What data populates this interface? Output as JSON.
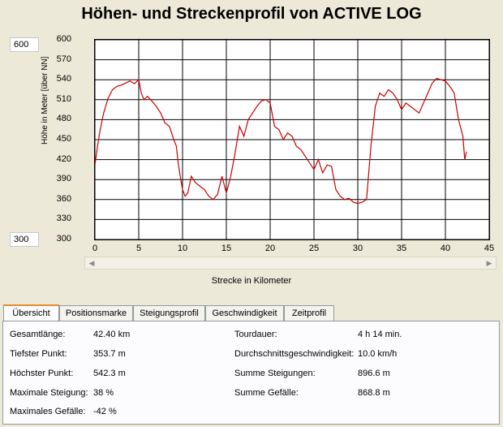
{
  "title": "Höhen- und Streckenprofil von ACTIVE LOG",
  "scale": {
    "max_value": "600",
    "min_value": "300"
  },
  "chart_data": {
    "type": "line",
    "xlabel": "Strecke in Kilometer",
    "ylabel": "Höhe in Meter [über NN]",
    "xlim": [
      0,
      45
    ],
    "ylim": [
      300,
      600
    ],
    "grid": true,
    "y_ticks": [
      "600",
      "570",
      "540",
      "510",
      "480",
      "450",
      "420",
      "390",
      "360",
      "330",
      "300"
    ],
    "x_ticks": [
      "0",
      "5",
      "10",
      "15",
      "20",
      "25",
      "30",
      "35",
      "40",
      "45"
    ],
    "line_color": "#cc0000",
    "x": [
      0,
      0.3,
      0.6,
      1,
      1.5,
      2,
      2.5,
      3,
      3.5,
      4,
      4.5,
      5,
      5.3,
      5.6,
      6,
      6.5,
      7,
      7.5,
      8,
      8.5,
      9,
      9.3,
      9.5,
      9.8,
      10,
      10.3,
      10.6,
      11,
      11.5,
      12,
      12.5,
      13,
      13.5,
      14,
      14.5,
      15,
      15.5,
      16,
      16.5,
      17,
      17.5,
      18,
      18.5,
      19,
      19.5,
      20,
      20.5,
      21,
      21.5,
      22,
      22.5,
      23,
      23.5,
      24,
      24.5,
      25,
      25.5,
      26,
      26.5,
      27,
      27.5,
      28,
      28.5,
      29,
      29.5,
      30,
      30.5,
      31,
      31.5,
      32,
      32.5,
      33,
      33.5,
      34,
      34.5,
      35,
      35.5,
      36,
      36.5,
      37,
      37.5,
      38,
      38.5,
      39,
      39.5,
      40,
      40.5,
      41,
      41.5,
      42,
      42.2,
      42.4
    ],
    "values": [
      412,
      440,
      465,
      490,
      512,
      525,
      530,
      532,
      535,
      538,
      534,
      540,
      520,
      510,
      515,
      508,
      500,
      490,
      475,
      470,
      450,
      440,
      415,
      390,
      375,
      365,
      370,
      395,
      385,
      380,
      375,
      365,
      360,
      368,
      395,
      370,
      395,
      430,
      470,
      455,
      480,
      490,
      500,
      508,
      510,
      505,
      470,
      465,
      450,
      460,
      455,
      440,
      435,
      425,
      415,
      405,
      420,
      400,
      412,
      410,
      375,
      365,
      360,
      362,
      356,
      354,
      356,
      360,
      440,
      500,
      520,
      515,
      525,
      520,
      510,
      495,
      505,
      500,
      495,
      490,
      505,
      520,
      535,
      542,
      540,
      538,
      530,
      520,
      480,
      455,
      420,
      432
    ]
  },
  "tabs": [
    {
      "label": "Übersicht"
    },
    {
      "label": "Positionsmarke"
    },
    {
      "label": "Steigungsprofil"
    },
    {
      "label": "Geschwindigkeit"
    },
    {
      "label": "Zeitprofil"
    }
  ],
  "summary": {
    "left": [
      {
        "label": "Gesamtlänge:",
        "value": "42.40 km"
      },
      {
        "label": "Tiefster Punkt:",
        "value": "353.7 m"
      },
      {
        "label": "Höchster Punkt:",
        "value": "542.3 m"
      },
      {
        "label": "Maximale Steigung:",
        "value": "38 %"
      },
      {
        "label": "Maximales Gefälle:",
        "value": "-42 %"
      }
    ],
    "right": [
      {
        "label": "Tourdauer:",
        "value": "4 h 14 min."
      },
      {
        "label": "Durchschnittsgeschwindigkeit:",
        "value": "10.0 km/h"
      },
      {
        "label": "Summe Steigungen:",
        "value": "896.6 m"
      },
      {
        "label": "Summe Gefälle:",
        "value": "868.8 m"
      }
    ]
  },
  "icons": {
    "scroll_left": "scroll-left-arrow",
    "scroll_right": "scroll-right-arrow"
  }
}
